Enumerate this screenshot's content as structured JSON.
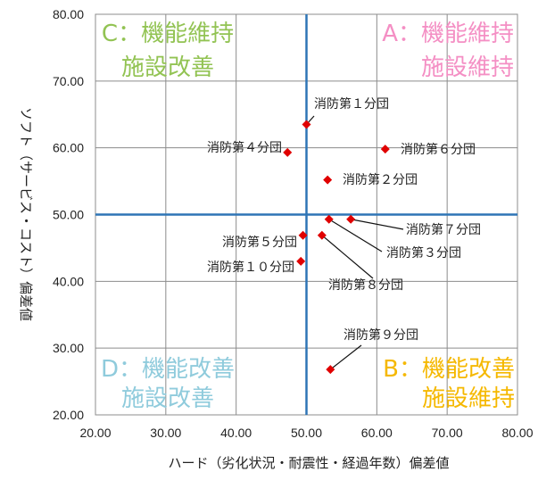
{
  "chart_data": {
    "type": "scatter",
    "xlabel": "ハード（劣化状況・耐震性・経過年数）偏差値",
    "ylabel": "ソフト（サービス・コスト）偏差値",
    "xlim": [
      20,
      80
    ],
    "ylim": [
      20,
      80
    ],
    "x_ticks": [
      "20.00",
      "30.00",
      "40.00",
      "50.00",
      "60.00",
      "70.00",
      "80.00"
    ],
    "y_ticks": [
      "20.00",
      "30.00",
      "40.00",
      "50.00",
      "60.00",
      "70.00",
      "80.00"
    ],
    "grid": true,
    "reference_lines": {
      "x": 50,
      "y": 50,
      "color": "#2e75b6"
    },
    "marker_color": "#e00000",
    "points": [
      {
        "label": "消防第１分団",
        "x": 50.0,
        "y": 63.5
      },
      {
        "label": "消防第２分団",
        "x": 53.0,
        "y": 55.2
      },
      {
        "label": "消防第３分団",
        "x": 53.2,
        "y": 49.3
      },
      {
        "label": "消防第４分団",
        "x": 47.3,
        "y": 59.3
      },
      {
        "label": "消防第５分団",
        "x": 49.5,
        "y": 46.9
      },
      {
        "label": "消防第６分団",
        "x": 61.2,
        "y": 59.8
      },
      {
        "label": "消防第７分団",
        "x": 56.3,
        "y": 49.3
      },
      {
        "label": "消防第８分団",
        "x": 52.2,
        "y": 46.9
      },
      {
        "label": "消防第９分団",
        "x": 53.4,
        "y": 26.8
      },
      {
        "label": "消防第１０分団",
        "x": 49.2,
        "y": 43.0
      }
    ],
    "quadrants": [
      {
        "id": "C",
        "lines": [
          "C：機能維持",
          "施設改善"
        ],
        "color": "#92c353"
      },
      {
        "id": "A",
        "lines": [
          "A：機能維持",
          "施設維持"
        ],
        "color": "#f48fc4"
      },
      {
        "id": "D",
        "lines": [
          "D：機能改善",
          "施設改善"
        ],
        "color": "#8fcbdc"
      },
      {
        "id": "B",
        "lines": [
          "B：機能改善",
          "施設維持"
        ],
        "color": "#f5b800"
      }
    ]
  }
}
